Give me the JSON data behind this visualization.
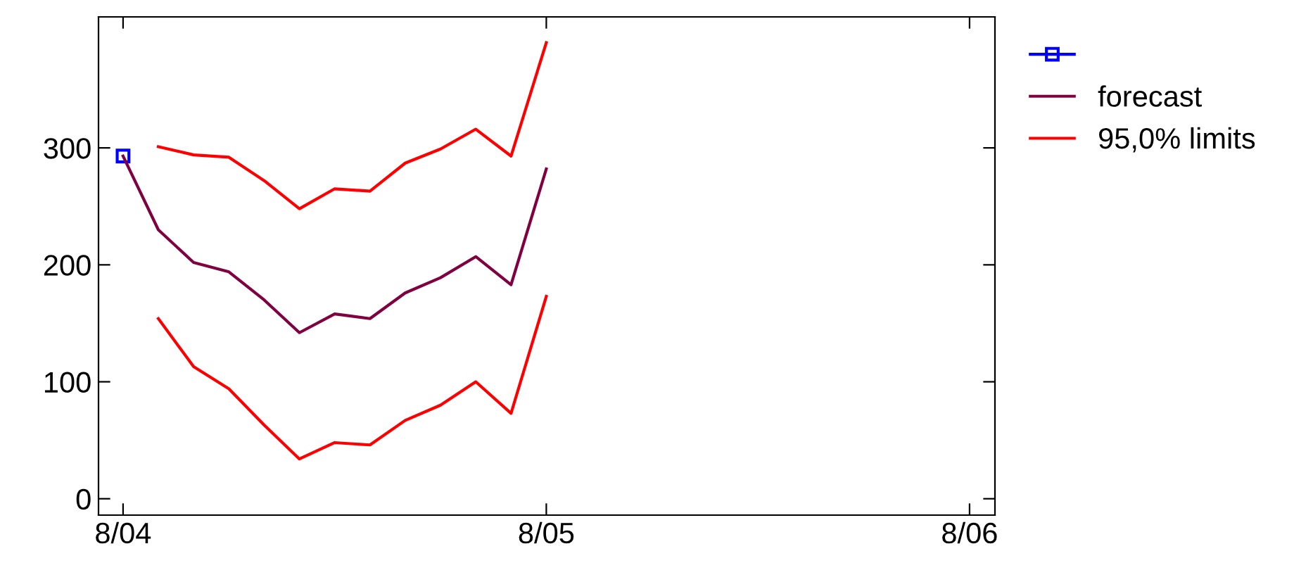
{
  "chart_data": {
    "type": "line",
    "legend": "right",
    "grid": false,
    "categories": [
      "8/04",
      null,
      null,
      null,
      null,
      null,
      null,
      null,
      null,
      null,
      null,
      null,
      "8/05",
      null,
      null,
      null,
      null,
      null,
      null,
      null,
      null,
      null,
      null,
      null,
      "8/06"
    ],
    "ylim": [
      -14,
      412
    ],
    "yticks": [
      0,
      100,
      200,
      300
    ],
    "series": [
      {
        "color": "#0000ff",
        "marker": "square",
        "values": [
          293,
          null,
          null,
          null,
          null,
          null,
          null,
          null,
          null,
          null,
          null,
          null,
          null,
          null,
          null,
          null,
          null,
          null,
          null,
          null,
          null,
          null,
          null,
          null,
          null
        ]
      },
      {
        "name": "forecast",
        "color": "#800040",
        "marker": "none",
        "values": [
          293,
          230,
          202,
          194,
          170,
          142,
          158,
          154,
          176,
          189,
          207,
          183,
          282,
          null,
          null,
          null,
          null,
          null,
          null,
          null,
          null,
          null,
          null,
          null,
          null
        ]
      },
      {
        "name": "95,0% limits",
        "color": "#ff0000",
        "marker": "none",
        "values": [
          null,
          301,
          294,
          292,
          272,
          248,
          265,
          263,
          287,
          299,
          316,
          293,
          390,
          null,
          null,
          null,
          null,
          null,
          null,
          null,
          null,
          null,
          null,
          null,
          null
        ]
      },
      {
        "color": "#ff0000",
        "marker": "none",
        "values": [
          null,
          154,
          113,
          94,
          63,
          34,
          48,
          46,
          67,
          80,
          100,
          73,
          173,
          null,
          null,
          null,
          null,
          null,
          null,
          null,
          null,
          null,
          null,
          null,
          null
        ]
      }
    ]
  }
}
